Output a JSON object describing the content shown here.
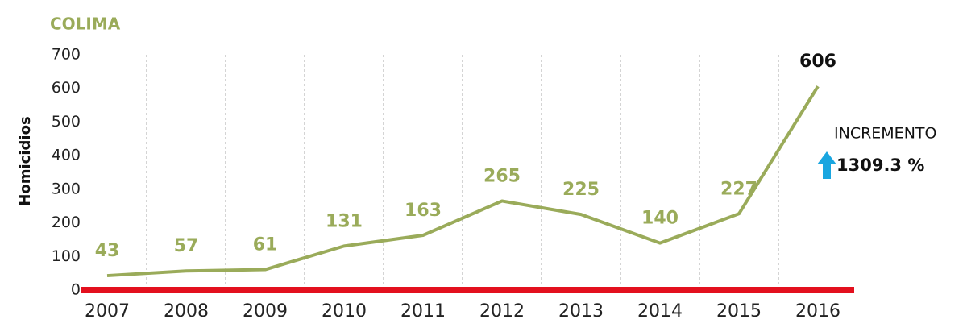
{
  "chart_data": {
    "type": "line",
    "title": "COLIMA",
    "y_label": "Homicidios",
    "categories": [
      "2007",
      "2008",
      "2009",
      "2010",
      "2011",
      "2012",
      "2013",
      "2014",
      "2015",
      "2016"
    ],
    "values": [
      43,
      57,
      61,
      131,
      163,
      265,
      225,
      140,
      227,
      606
    ],
    "color": "#9aab5a",
    "baseline_color": "#e3101e",
    "ylim": [
      0,
      700
    ],
    "yticks": [
      0,
      100,
      200,
      300,
      400,
      500,
      600,
      700
    ],
    "annotations": [
      "INCREMENTO",
      "1309.3 %"
    ]
  }
}
